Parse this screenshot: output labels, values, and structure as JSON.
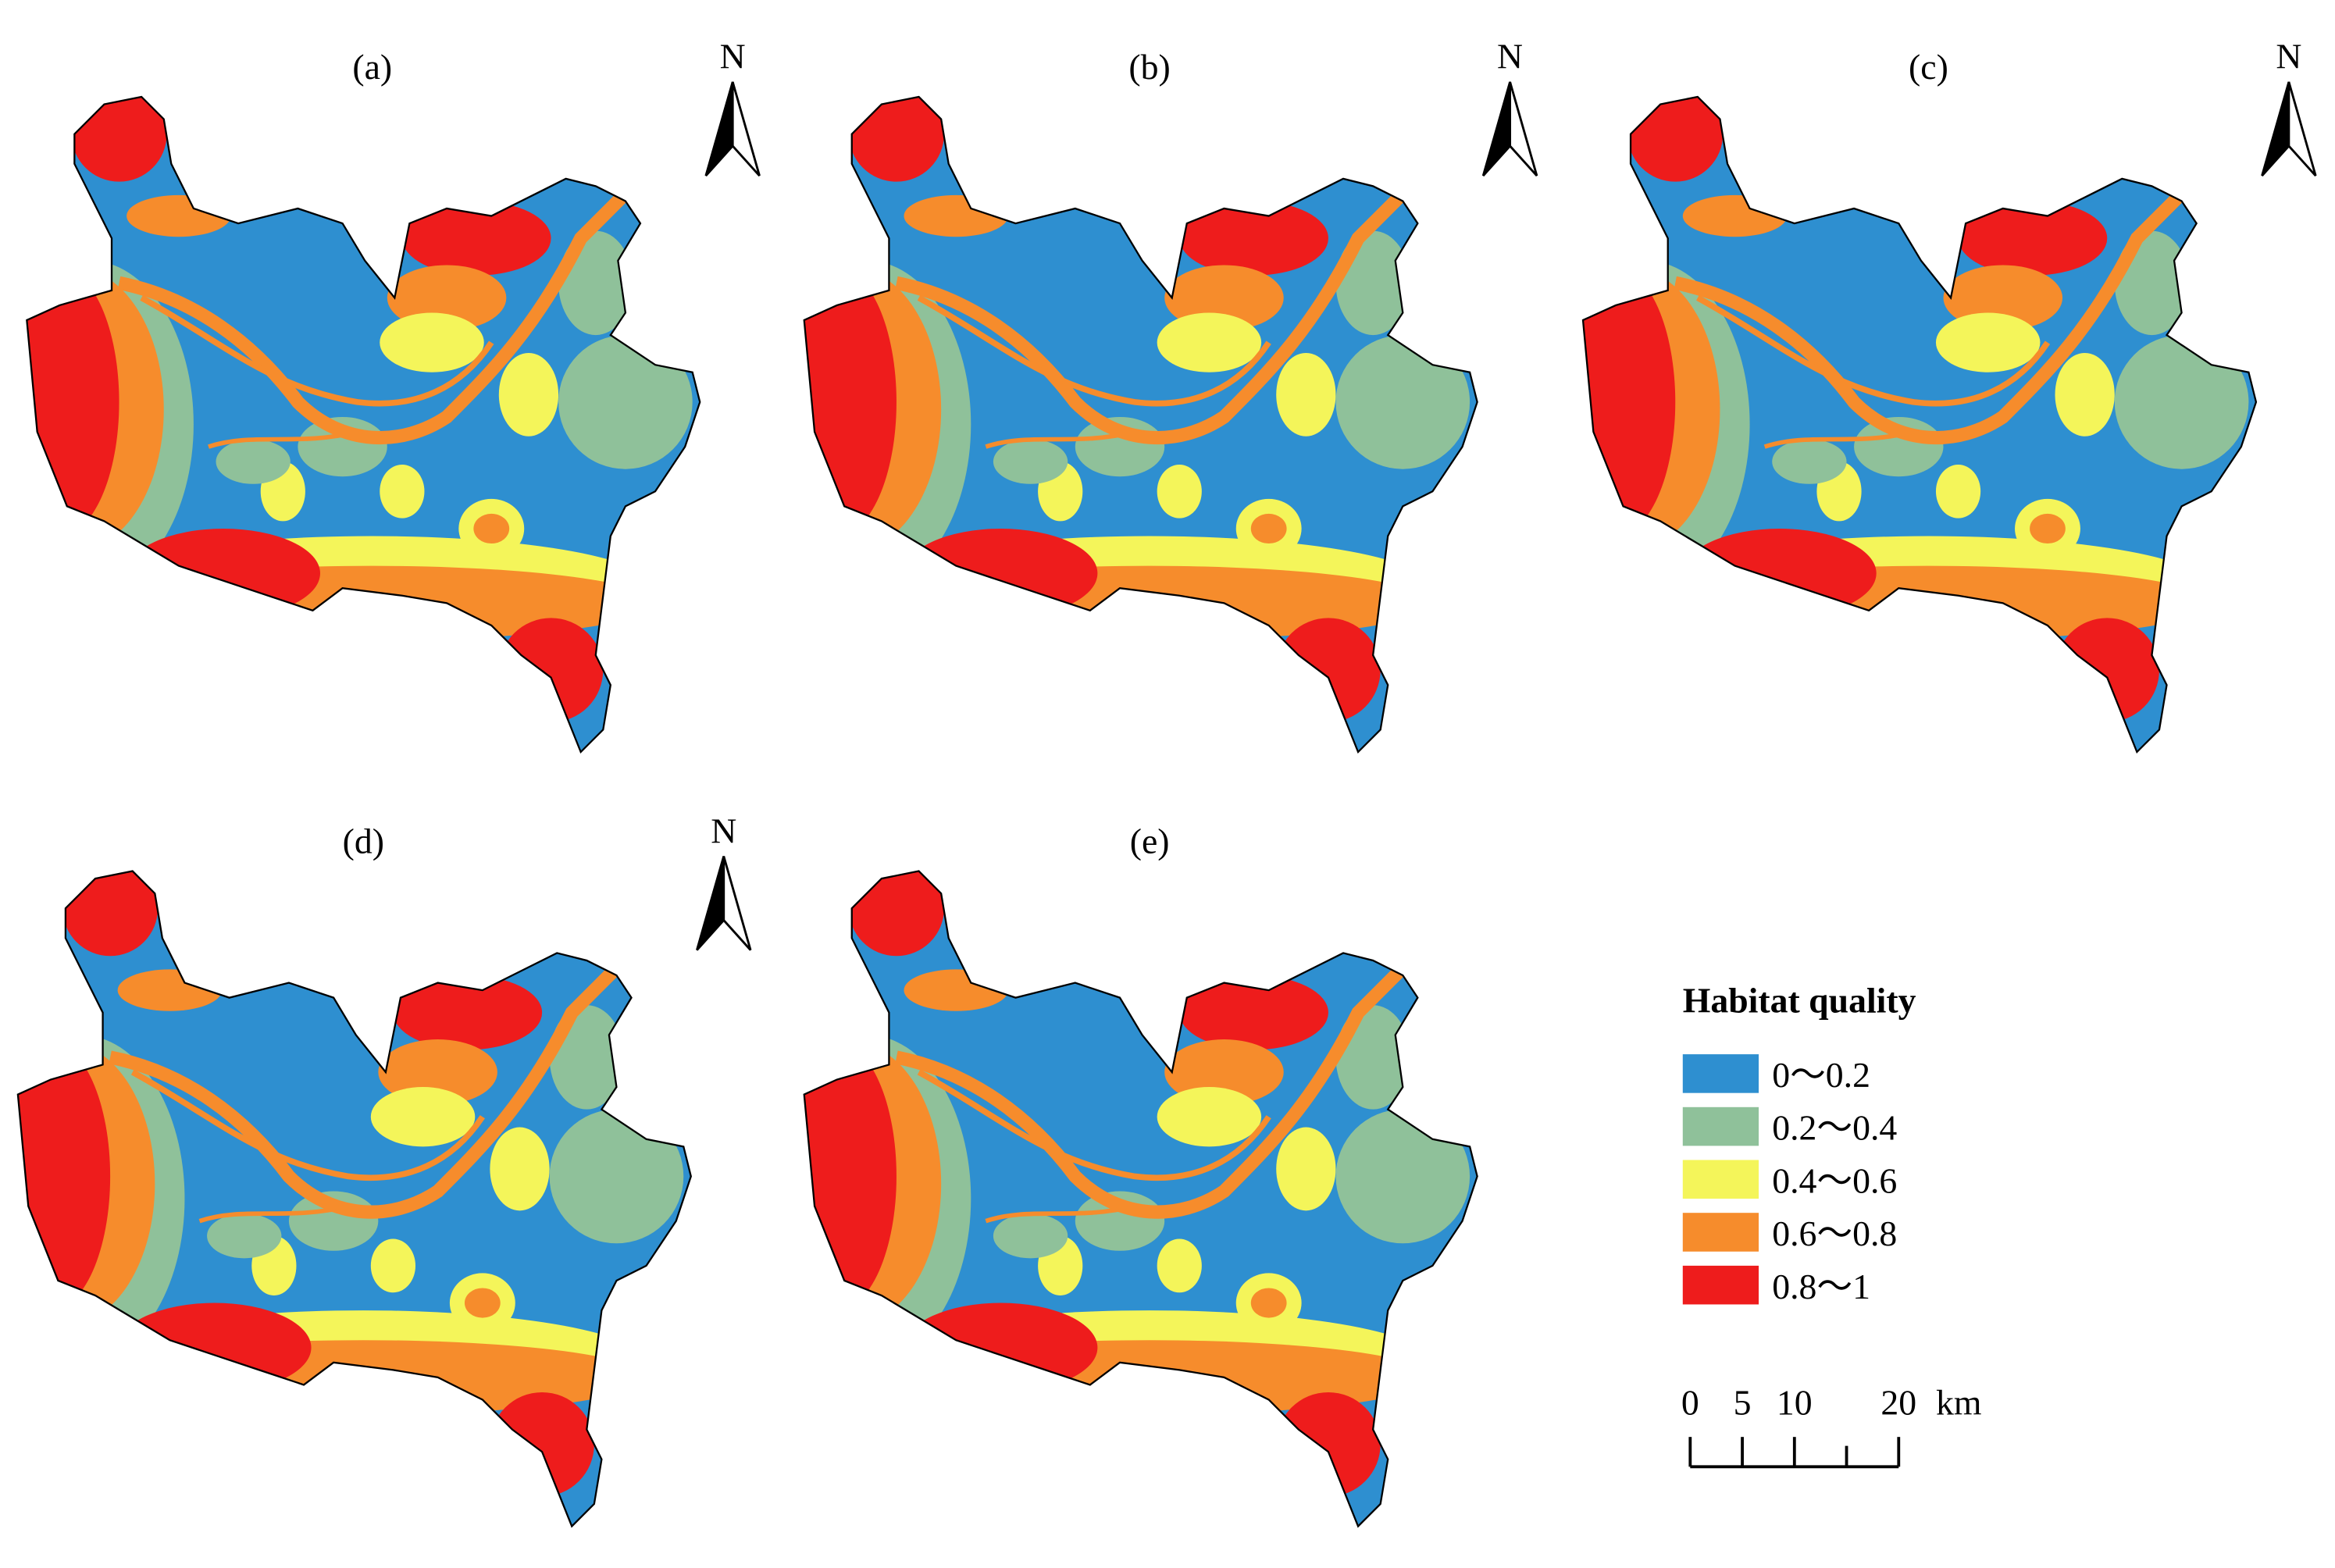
{
  "panels": [
    {
      "label": "(a)",
      "north_arrow": "N"
    },
    {
      "label": "(b)",
      "north_arrow": "N"
    },
    {
      "label": "(c)",
      "north_arrow": "N"
    },
    {
      "label": "(d)",
      "north_arrow": "N"
    },
    {
      "label": "(e)"
    }
  ],
  "legend": {
    "title": "Habitat quality",
    "items": [
      {
        "label": "0～0.2",
        "color": "#2e8fd0"
      },
      {
        "label": "0.2～0.4",
        "color": "#8fc19a"
      },
      {
        "label": "0.4～0.6",
        "color": "#f4f55a"
      },
      {
        "label": "0.6～0.8",
        "color": "#f68c2c"
      },
      {
        "label": "0.8～1",
        "color": "#ee1c1c"
      }
    ]
  },
  "scale_bar": {
    "ticks": [
      0,
      5,
      10,
      20
    ],
    "unit": "km"
  }
}
